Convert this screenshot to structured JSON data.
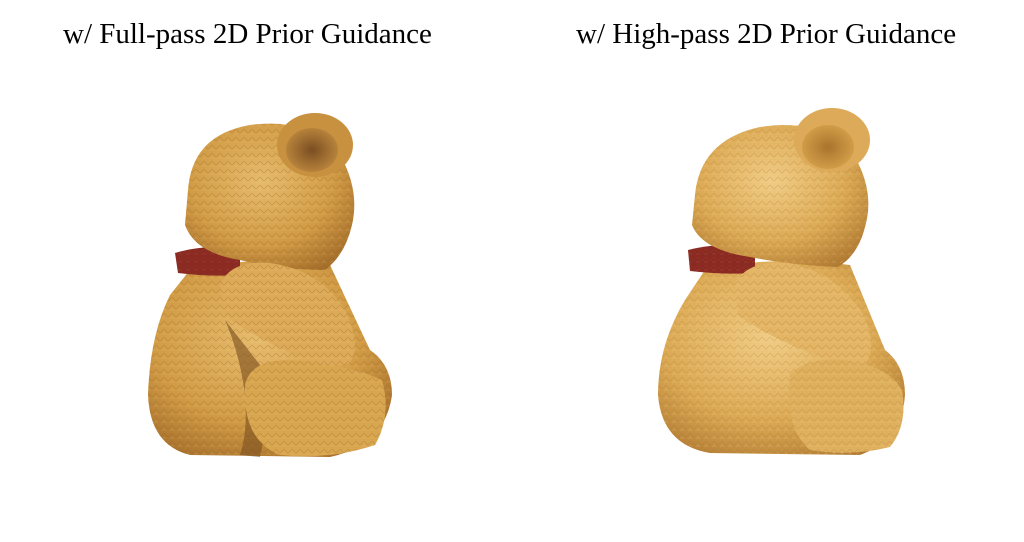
{
  "panels": [
    {
      "title": "w/ Full-pass 2D Prior Guidance",
      "image": "teddy-bear-render-full-pass"
    },
    {
      "title": "w/ High-pass 2D Prior Guidance",
      "image": "teddy-bear-render-high-pass"
    }
  ],
  "colors": {
    "fur_base": "#d9a54e",
    "fur_light": "#e9c07a",
    "fur_dark": "#a9742c",
    "collar": "#8b2a22",
    "background": "#ffffff"
  }
}
